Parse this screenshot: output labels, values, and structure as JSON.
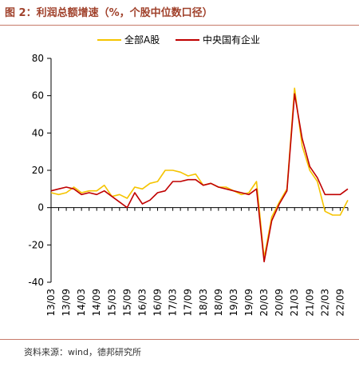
{
  "header": {
    "title": "图 2：利润总额增速（%，个股中位数口径）"
  },
  "footer": {
    "source": "资料来源：wind，德邦研究所"
  },
  "chart_data": {
    "type": "line",
    "title": "",
    "xlabel": "",
    "ylabel": "",
    "ylim": [
      -40,
      80
    ],
    "yticks": [
      -40,
      -20,
      0,
      20,
      40,
      60,
      80
    ],
    "legend_position": "top-center",
    "grid": false,
    "x": [
      "13/03",
      "13/06",
      "13/09",
      "13/12",
      "14/03",
      "14/06",
      "14/09",
      "14/12",
      "15/03",
      "15/06",
      "15/09",
      "15/12",
      "16/03",
      "16/06",
      "16/09",
      "16/12",
      "17/03",
      "17/06",
      "17/09",
      "17/12",
      "18/03",
      "18/06",
      "18/09",
      "18/12",
      "19/03",
      "19/06",
      "19/09",
      "19/12",
      "20/03",
      "20/06",
      "20/09",
      "20/12",
      "21/03",
      "21/06",
      "21/09",
      "21/12",
      "22/03",
      "22/06",
      "22/09",
      "22/12"
    ],
    "xtick_labels": [
      "13/03",
      "13/09",
      "14/03",
      "14/09",
      "15/03",
      "15/09",
      "16/03",
      "16/09",
      "17/03",
      "17/09",
      "18/03",
      "18/09",
      "19/03",
      "19/09",
      "20/03",
      "20/09",
      "21/03",
      "21/09",
      "22/03",
      "22/09"
    ],
    "series": [
      {
        "name": "全部A股",
        "color": "#f5c400",
        "values": [
          8,
          7,
          8,
          11,
          8,
          9,
          9,
          12,
          6,
          7,
          5,
          11,
          10,
          13,
          14,
          20,
          20,
          19,
          17,
          18,
          12,
          13,
          11,
          11,
          9,
          7,
          8,
          14,
          -27,
          -5,
          3,
          10,
          64,
          33,
          20,
          14,
          -2,
          -4,
          -4,
          4
        ]
      },
      {
        "name": "中央国有企业",
        "color": "#c00000",
        "values": [
          9,
          10,
          11,
          10,
          7,
          8,
          7,
          9,
          6,
          3,
          0,
          8,
          2,
          4,
          8,
          9,
          14,
          14,
          15,
          15,
          12,
          13,
          11,
          10,
          9,
          8,
          7,
          10,
          -29,
          -7,
          2,
          9,
          61,
          37,
          22,
          16,
          7,
          7,
          7,
          10
        ]
      }
    ]
  }
}
